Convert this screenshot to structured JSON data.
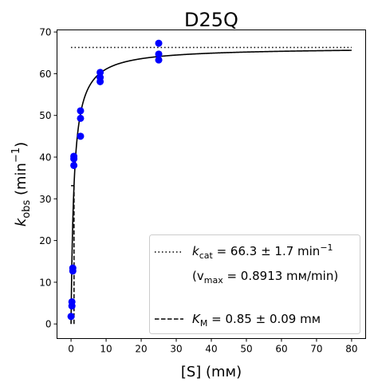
{
  "chart_data": {
    "type": "scatter",
    "title": "D25Q",
    "xlabel": "[S] (mм)",
    "ylabel_main": "k",
    "ylabel_sub": "obs",
    "ylabel_rest": " (min",
    "ylabel_sup": "−1",
    "ylabel_close": ")",
    "xlim": [
      -4,
      84
    ],
    "ylim": [
      -3.5,
      70.5
    ],
    "xticks": [
      0,
      10,
      20,
      30,
      40,
      50,
      60,
      70,
      80
    ],
    "yticks": [
      0,
      10,
      20,
      30,
      40,
      50,
      60,
      70
    ],
    "grid": false,
    "points": [
      {
        "x": 0,
        "y": 1.8
      },
      {
        "x": 0.25,
        "y": 4.3
      },
      {
        "x": 0.25,
        "y": 5.3
      },
      {
        "x": 0.5,
        "y": 12.7
      },
      {
        "x": 0.5,
        "y": 13.4
      },
      {
        "x": 0.8,
        "y": 38.0
      },
      {
        "x": 0.8,
        "y": 39.6
      },
      {
        "x": 0.8,
        "y": 40.2
      },
      {
        "x": 2.7,
        "y": 45.0
      },
      {
        "x": 2.7,
        "y": 49.3
      },
      {
        "x": 2.7,
        "y": 51.1
      },
      {
        "x": 8.3,
        "y": 58.1
      },
      {
        "x": 8.3,
        "y": 59.1
      },
      {
        "x": 8.3,
        "y": 60.3
      },
      {
        "x": 25,
        "y": 63.3
      },
      {
        "x": 25,
        "y": 64.7
      },
      {
        "x": 25,
        "y": 67.3
      }
    ],
    "point_color": "#0000ff",
    "fit": {
      "kcat": 66.3,
      "KM": 0.85,
      "x_max": 80
    },
    "kcat_line": {
      "y": 66.3,
      "x_from": 0,
      "x_to": 80
    },
    "km_line": {
      "x": 0.85,
      "y_from": 0,
      "y_to": 33.15
    },
    "legend": {
      "placement": "lower right",
      "kcat_main": "k",
      "kcat_sub": "cat",
      "kcat_rest": " = 66.3 ± 1.7 min",
      "kcat_sup": "−1",
      "vmax_open": "(v",
      "vmax_sub": "max",
      "vmax_rest": " = 0.8913 mм/min)",
      "km_main": "K",
      "km_sub": "M",
      "km_rest": " = 0.85 ± 0.09 mм"
    }
  }
}
